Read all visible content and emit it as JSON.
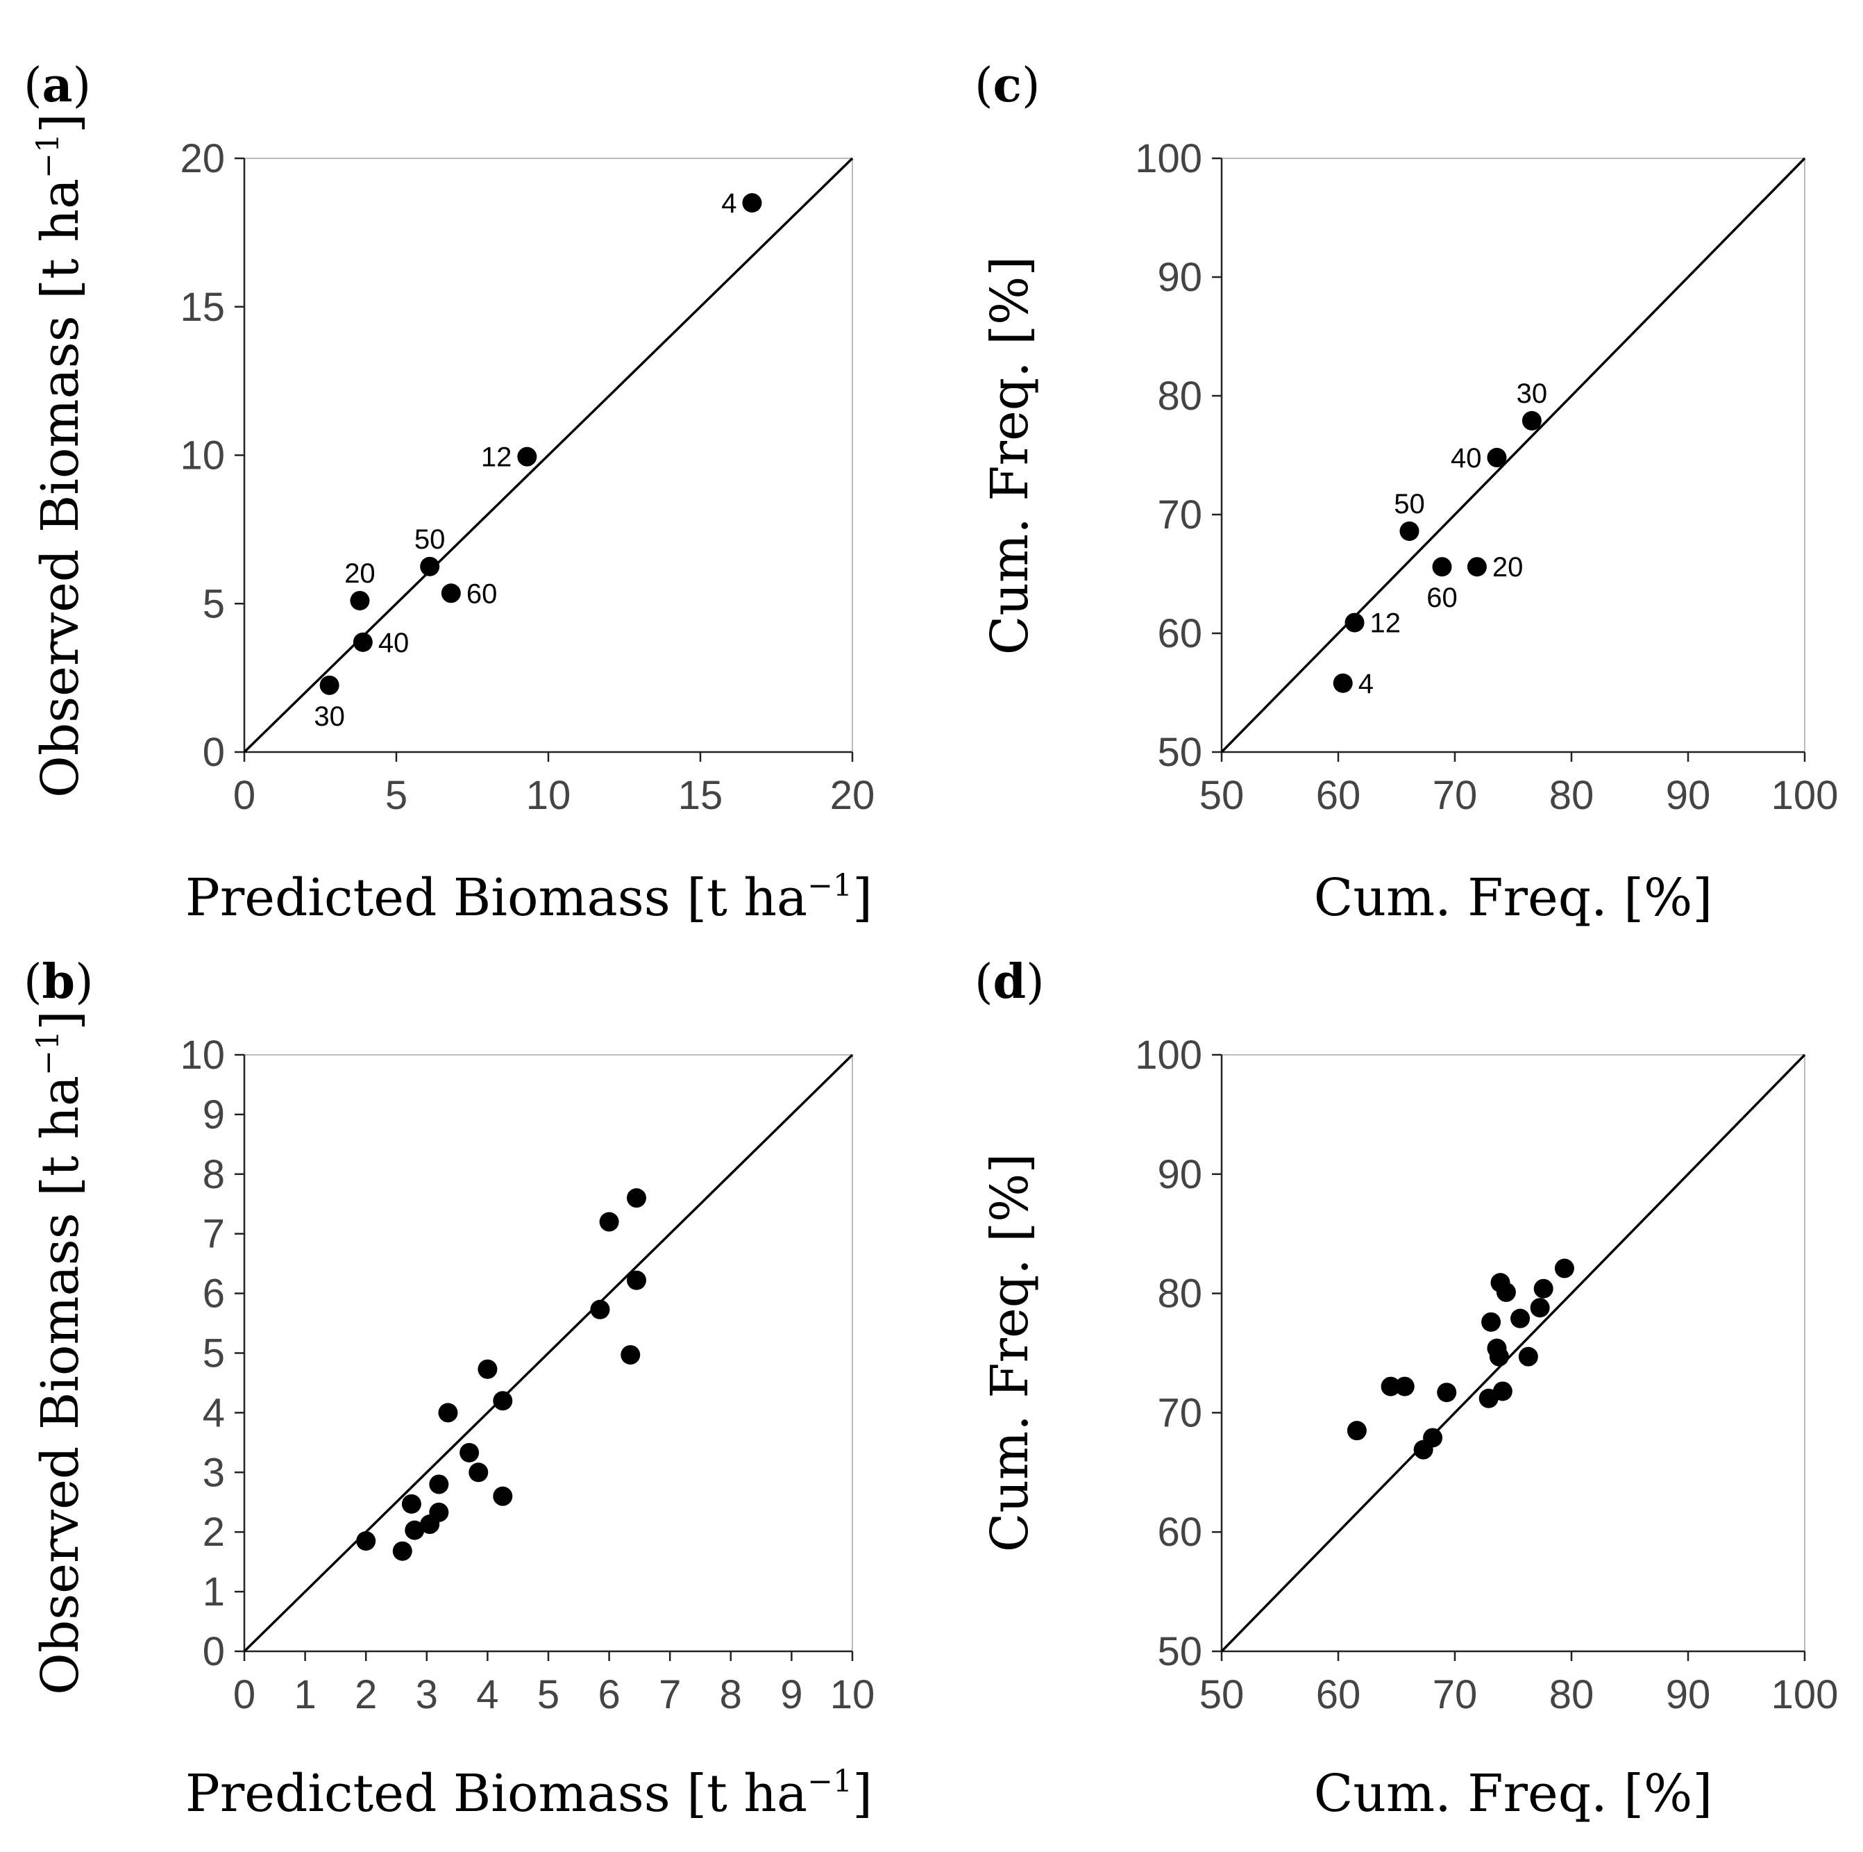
{
  "chart_data": [
    {
      "id": "a",
      "panel_label": "a",
      "type": "scatter",
      "xlabel": "Predicted Biomass [t ha",
      "ylabel": "Observed Biomass [t ha",
      "unit_superscript": "−1",
      "xlim": [
        0,
        20
      ],
      "ylim": [
        0,
        20
      ],
      "xticks": [
        "0",
        "5",
        "10",
        "15",
        "20"
      ],
      "yticks": [
        "0",
        "5",
        "10",
        "15",
        "20"
      ],
      "tick_values": [
        0,
        5,
        10,
        15,
        20
      ],
      "identity_line": true,
      "points": [
        {
          "x": 16.7,
          "y": 18.5,
          "label": "4",
          "label_side": "left"
        },
        {
          "x": 9.3,
          "y": 9.95,
          "label": "12",
          "label_side": "left"
        },
        {
          "x": 6.1,
          "y": 6.25,
          "label": "50",
          "label_side": "above"
        },
        {
          "x": 6.8,
          "y": 5.35,
          "label": "60",
          "label_side": "right"
        },
        {
          "x": 3.8,
          "y": 5.1,
          "label": "20",
          "label_side": "above"
        },
        {
          "x": 3.9,
          "y": 3.7,
          "label": "40",
          "label_side": "right"
        },
        {
          "x": 2.8,
          "y": 2.25,
          "label": "30",
          "label_side": "below"
        }
      ]
    },
    {
      "id": "b",
      "panel_label": "b",
      "type": "scatter",
      "xlabel": "Predicted Biomass [t ha",
      "ylabel": "Observed Biomass [t ha",
      "unit_superscript": "−1",
      "xlim": [
        0,
        10
      ],
      "ylim": [
        0,
        10
      ],
      "xticks": [
        "0",
        "1",
        "2",
        "3",
        "4",
        "5",
        "6",
        "7",
        "8",
        "9",
        "10"
      ],
      "yticks": [
        "0",
        "1",
        "2",
        "3",
        "4",
        "5",
        "6",
        "7",
        "8",
        "9",
        "10"
      ],
      "tick_values": [
        0,
        1,
        2,
        3,
        4,
        5,
        6,
        7,
        8,
        9,
        10
      ],
      "identity_line": true,
      "points": [
        {
          "x": 2.0,
          "y": 1.85
        },
        {
          "x": 2.6,
          "y": 1.68
        },
        {
          "x": 2.75,
          "y": 2.47
        },
        {
          "x": 2.8,
          "y": 2.03
        },
        {
          "x": 3.05,
          "y": 2.13
        },
        {
          "x": 3.2,
          "y": 2.33
        },
        {
          "x": 3.2,
          "y": 2.8
        },
        {
          "x": 3.35,
          "y": 4.0
        },
        {
          "x": 3.7,
          "y": 3.33
        },
        {
          "x": 3.85,
          "y": 3.0
        },
        {
          "x": 4.0,
          "y": 4.73
        },
        {
          "x": 4.25,
          "y": 4.2
        },
        {
          "x": 4.25,
          "y": 2.6
        },
        {
          "x": 5.85,
          "y": 5.73
        },
        {
          "x": 6.0,
          "y": 7.2
        },
        {
          "x": 6.35,
          "y": 4.97
        },
        {
          "x": 6.45,
          "y": 6.22
        },
        {
          "x": 6.45,
          "y": 7.6
        }
      ]
    },
    {
      "id": "c",
      "panel_label": "c",
      "type": "scatter",
      "xlabel": "Cum. Freq. [%]",
      "ylabel": "Cum. Freq. [%]",
      "xlim": [
        50,
        100
      ],
      "ylim": [
        50,
        100
      ],
      "xticks": [
        "50",
        "60",
        "70",
        "80",
        "90",
        "100"
      ],
      "yticks": [
        "50",
        "60",
        "70",
        "80",
        "90",
        "100"
      ],
      "tick_values": [
        50,
        60,
        70,
        80,
        90,
        100
      ],
      "identity_line": true,
      "points": [
        {
          "x": 60.4,
          "y": 55.8,
          "label": "4",
          "label_side": "right"
        },
        {
          "x": 61.4,
          "y": 60.9,
          "label": "12",
          "label_side": "right"
        },
        {
          "x": 66.1,
          "y": 68.6,
          "label": "50",
          "label_side": "above"
        },
        {
          "x": 68.9,
          "y": 65.6,
          "label": "60",
          "label_side": "below"
        },
        {
          "x": 71.9,
          "y": 65.6,
          "label": "20",
          "label_side": "right"
        },
        {
          "x": 73.6,
          "y": 74.8,
          "label": "40",
          "label_side": "left"
        },
        {
          "x": 76.6,
          "y": 77.9,
          "label": "30",
          "label_side": "above"
        }
      ]
    },
    {
      "id": "d",
      "panel_label": "d",
      "type": "scatter",
      "xlabel": "Cum. Freq. [%]",
      "ylabel": "Cum. Freq. [%]",
      "xlim": [
        50,
        100
      ],
      "ylim": [
        50,
        100
      ],
      "xticks": [
        "50",
        "60",
        "70",
        "80",
        "90",
        "100"
      ],
      "yticks": [
        "50",
        "60",
        "70",
        "80",
        "90",
        "100"
      ],
      "tick_values": [
        50,
        60,
        70,
        80,
        90,
        100
      ],
      "identity_line": true,
      "points": [
        {
          "x": 61.6,
          "y": 68.5
        },
        {
          "x": 64.5,
          "y": 72.2
        },
        {
          "x": 65.7,
          "y": 72.2
        },
        {
          "x": 67.3,
          "y": 66.9
        },
        {
          "x": 68.1,
          "y": 67.9
        },
        {
          "x": 69.3,
          "y": 71.7
        },
        {
          "x": 72.9,
          "y": 71.2
        },
        {
          "x": 73.1,
          "y": 77.6
        },
        {
          "x": 73.6,
          "y": 75.4
        },
        {
          "x": 73.8,
          "y": 74.7
        },
        {
          "x": 73.9,
          "y": 80.9
        },
        {
          "x": 74.1,
          "y": 71.8
        },
        {
          "x": 74.4,
          "y": 80.1
        },
        {
          "x": 75.6,
          "y": 77.9
        },
        {
          "x": 76.3,
          "y": 74.7
        },
        {
          "x": 77.3,
          "y": 78.8
        },
        {
          "x": 77.6,
          "y": 80.4
        },
        {
          "x": 79.4,
          "y": 82.1
        }
      ]
    }
  ]
}
